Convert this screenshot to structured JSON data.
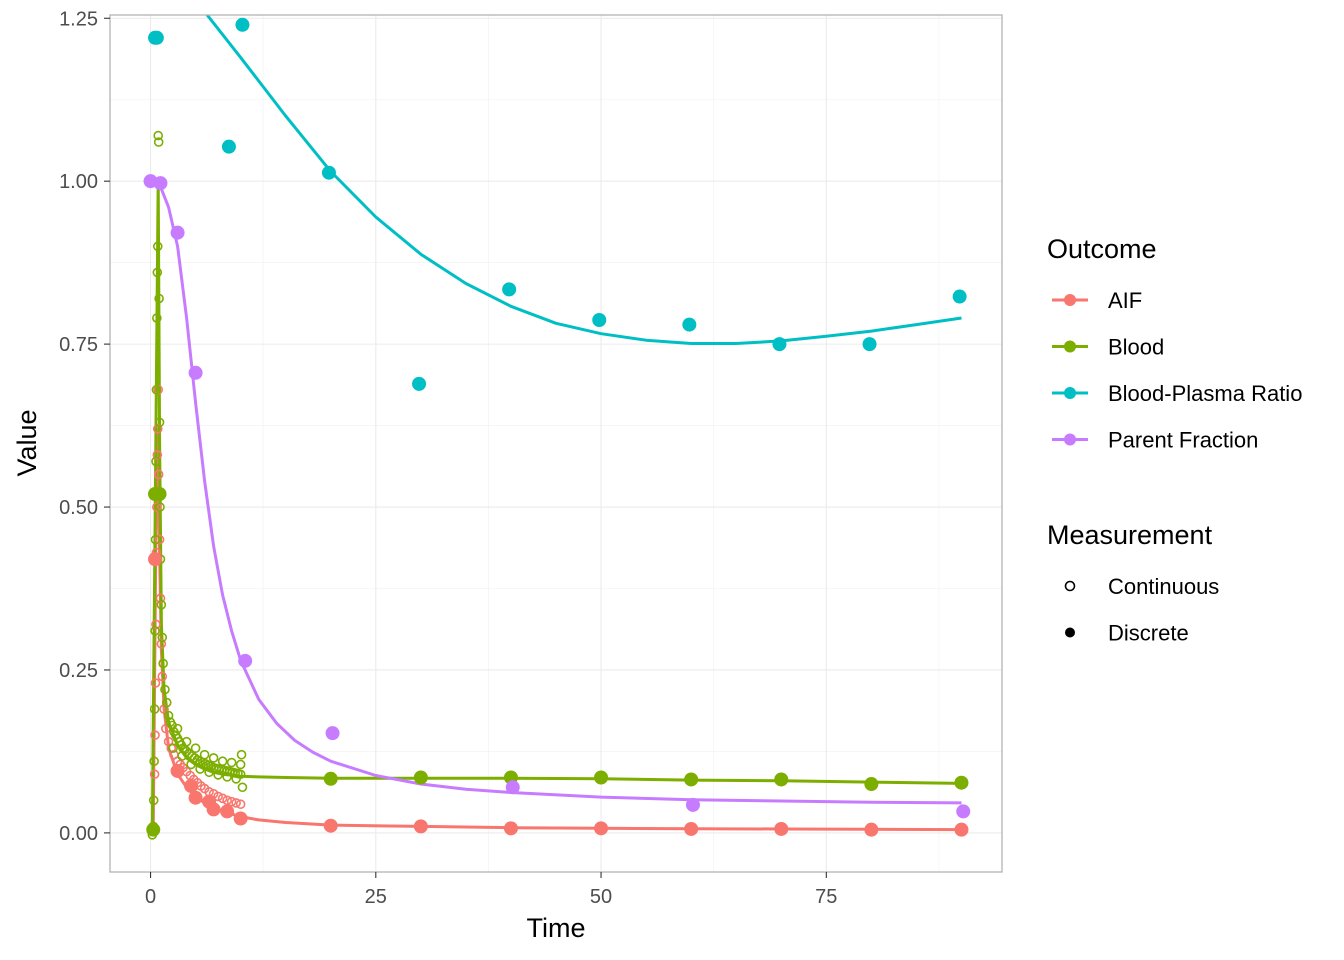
{
  "chart_data": {
    "type": "scatter",
    "xlabel": "Time",
    "ylabel": "Value",
    "xlim": [
      -4.5,
      94.5
    ],
    "ylim": [
      -0.06,
      1.255
    ],
    "x_ticks": [
      0,
      25,
      50,
      75
    ],
    "x_tick_labels": [
      "0",
      "25",
      "50",
      "75"
    ],
    "y_ticks": [
      0,
      0.25,
      0.5,
      0.75,
      1.0,
      1.25
    ],
    "y_tick_labels": [
      "0.00",
      "0.25",
      "0.50",
      "0.75",
      "1.00",
      "1.25"
    ],
    "grid": true,
    "legend_position": "right",
    "legend": {
      "outcome_title": "Outcome",
      "outcome_entries": [
        {
          "label": "AIF",
          "color": "#F8766D"
        },
        {
          "label": "Blood",
          "color": "#7CAE00"
        },
        {
          "label": "Blood-Plasma Ratio",
          "color": "#00BFC4"
        },
        {
          "label": "Parent Fraction",
          "color": "#C77CFF"
        }
      ],
      "measurement_title": "Measurement",
      "measurement_entries": [
        {
          "label": "Continuous",
          "shape": "open-circle"
        },
        {
          "label": "Discrete",
          "shape": "filled-circle"
        }
      ]
    },
    "series": [
      {
        "name": "AIF",
        "color": "#F8766D",
        "discrete_points": [
          [
            0.5,
            0.42
          ],
          [
            3,
            0.095
          ],
          [
            4.5,
            0.072
          ],
          [
            5,
            0.054
          ],
          [
            6.5,
            0.048
          ],
          [
            7,
            0.036
          ],
          [
            8.5,
            0.033
          ],
          [
            10,
            0.022
          ],
          [
            20,
            0.011
          ],
          [
            30,
            0.01
          ],
          [
            40,
            0.007
          ],
          [
            50,
            0.007
          ],
          [
            60,
            0.006
          ],
          [
            70,
            0.006
          ],
          [
            80,
            0.005
          ],
          [
            90,
            0.005
          ]
        ],
        "continuous_points": [
          [
            0.3,
            0.01
          ],
          [
            0.45,
            0.09
          ],
          [
            0.5,
            0.15
          ],
          [
            0.55,
            0.23
          ],
          [
            0.6,
            0.32
          ],
          [
            0.65,
            0.43
          ],
          [
            0.7,
            0.5
          ],
          [
            0.75,
            0.58
          ],
          [
            0.8,
            0.62
          ],
          [
            0.85,
            0.68
          ],
          [
            0.9,
            0.55
          ],
          [
            1.0,
            0.45
          ],
          [
            1.1,
            0.36
          ],
          [
            1.2,
            0.29
          ],
          [
            1.3,
            0.24
          ],
          [
            1.5,
            0.19
          ],
          [
            1.7,
            0.16
          ],
          [
            2.0,
            0.14
          ],
          [
            2.3,
            0.13
          ],
          [
            2.6,
            0.12
          ],
          [
            3.0,
            0.11
          ],
          [
            3.3,
            0.105
          ],
          [
            3.6,
            0.1
          ],
          [
            4.0,
            0.094
          ],
          [
            4.4,
            0.088
          ],
          [
            4.8,
            0.082
          ],
          [
            5.2,
            0.077
          ],
          [
            5.6,
            0.072
          ],
          [
            6.0,
            0.068
          ],
          [
            6.5,
            0.063
          ],
          [
            7.0,
            0.06
          ],
          [
            7.5,
            0.056
          ],
          [
            8.0,
            0.053
          ],
          [
            8.5,
            0.05
          ],
          [
            9.0,
            0.048
          ],
          [
            9.5,
            0.046
          ],
          [
            10.0,
            0.044
          ]
        ],
        "fit_curve": [
          [
            0.3,
            0
          ],
          [
            0.7,
            0.62
          ],
          [
            0.9,
            0.5
          ],
          [
            1.2,
            0.28
          ],
          [
            1.5,
            0.19
          ],
          [
            2,
            0.13
          ],
          [
            3,
            0.09
          ],
          [
            4,
            0.07
          ],
          [
            5,
            0.056
          ],
          [
            6,
            0.046
          ],
          [
            7,
            0.039
          ],
          [
            8,
            0.033
          ],
          [
            10,
            0.025
          ],
          [
            12,
            0.02
          ],
          [
            15,
            0.016
          ],
          [
            20,
            0.012
          ],
          [
            30,
            0.01
          ],
          [
            40,
            0.008
          ],
          [
            50,
            0.007
          ],
          [
            60,
            0.0065
          ],
          [
            70,
            0.006
          ],
          [
            80,
            0.0055
          ],
          [
            90,
            0.005
          ]
        ]
      },
      {
        "name": "Blood",
        "color": "#7CAE00",
        "discrete_points": [
          [
            0.3,
            0.005
          ],
          [
            0.5,
            0.52
          ],
          [
            1,
            0.52
          ],
          [
            20,
            0.083
          ],
          [
            30,
            0.085
          ],
          [
            40,
            0.085
          ],
          [
            50,
            0.085
          ],
          [
            60,
            0.082
          ],
          [
            70,
            0.082
          ],
          [
            80,
            0.075
          ],
          [
            90,
            0.077
          ]
        ],
        "continuous_points": [
          [
            0.2,
            -0.003
          ],
          [
            0.3,
            0.01
          ],
          [
            0.35,
            0.05
          ],
          [
            0.4,
            0.11
          ],
          [
            0.45,
            0.19
          ],
          [
            0.5,
            0.31
          ],
          [
            0.55,
            0.45
          ],
          [
            0.6,
            0.57
          ],
          [
            0.65,
            0.68
          ],
          [
            0.7,
            0.79
          ],
          [
            0.75,
            0.86
          ],
          [
            0.8,
            0.9
          ],
          [
            0.85,
            1.07
          ],
          [
            0.9,
            1.06
          ],
          [
            0.95,
            0.82
          ],
          [
            1.0,
            0.63
          ],
          [
            1.05,
            0.5
          ],
          [
            1.1,
            0.42
          ],
          [
            1.2,
            0.35
          ],
          [
            1.3,
            0.3
          ],
          [
            1.4,
            0.26
          ],
          [
            1.6,
            0.22
          ],
          [
            1.8,
            0.2
          ],
          [
            2.0,
            0.18
          ],
          [
            2.2,
            0.17
          ],
          [
            2.4,
            0.165
          ],
          [
            2.6,
            0.155
          ],
          [
            2.8,
            0.15
          ],
          [
            3.0,
            0.145
          ],
          [
            3.2,
            0.14
          ],
          [
            3.4,
            0.135
          ],
          [
            3.6,
            0.13
          ],
          [
            3.8,
            0.128
          ],
          [
            4.0,
            0.125
          ],
          [
            4.3,
            0.122
          ],
          [
            4.6,
            0.118
          ],
          [
            4.9,
            0.115
          ],
          [
            5.2,
            0.112
          ],
          [
            5.5,
            0.11
          ],
          [
            5.8,
            0.108
          ],
          [
            6.1,
            0.106
          ],
          [
            6.4,
            0.104
          ],
          [
            6.7,
            0.102
          ],
          [
            7.0,
            0.1
          ],
          [
            7.3,
            0.099
          ],
          [
            7.6,
            0.098
          ],
          [
            7.9,
            0.097
          ],
          [
            8.2,
            0.096
          ],
          [
            8.5,
            0.095
          ],
          [
            8.8,
            0.094
          ],
          [
            9.1,
            0.093
          ],
          [
            9.4,
            0.092
          ],
          [
            9.7,
            0.091
          ],
          [
            10.0,
            0.09
          ],
          [
            2.5,
            0.13
          ],
          [
            3.5,
            0.118
          ],
          [
            4.5,
            0.105
          ],
          [
            5.5,
            0.098
          ],
          [
            6.5,
            0.093
          ],
          [
            7.5,
            0.089
          ],
          [
            8.5,
            0.086
          ],
          [
            9.5,
            0.083
          ],
          [
            3.0,
            0.16
          ],
          [
            4.0,
            0.14
          ],
          [
            5.0,
            0.13
          ],
          [
            6.0,
            0.12
          ],
          [
            7.0,
            0.115
          ],
          [
            8.0,
            0.11
          ],
          [
            9.0,
            0.108
          ],
          [
            10.0,
            0.105
          ],
          [
            10.2,
            0.07
          ],
          [
            10.1,
            0.12
          ]
        ],
        "fit_curve": [
          [
            0.2,
            0
          ],
          [
            0.85,
            1.0
          ],
          [
            1.0,
            0.6
          ],
          [
            1.2,
            0.32
          ],
          [
            1.5,
            0.22
          ],
          [
            2,
            0.17
          ],
          [
            3,
            0.135
          ],
          [
            4,
            0.115
          ],
          [
            5,
            0.105
          ],
          [
            6,
            0.098
          ],
          [
            7,
            0.093
          ],
          [
            8,
            0.09
          ],
          [
            10,
            0.087
          ],
          [
            12,
            0.086
          ],
          [
            15,
            0.085
          ],
          [
            20,
            0.084
          ],
          [
            30,
            0.084
          ],
          [
            40,
            0.084
          ],
          [
            50,
            0.083
          ],
          [
            60,
            0.081
          ],
          [
            70,
            0.08
          ],
          [
            80,
            0.078
          ],
          [
            90,
            0.076
          ]
        ]
      },
      {
        "name": "Blood-Plasma Ratio",
        "color": "#00BFC4",
        "discrete_points": [
          [
            0.5,
            1.22
          ],
          [
            0.7,
            1.22
          ],
          [
            8.7,
            1.053
          ],
          [
            10.2,
            1.24
          ],
          [
            19.8,
            1.013
          ],
          [
            29.8,
            0.689
          ],
          [
            39.8,
            0.834
          ],
          [
            49.8,
            0.787
          ],
          [
            59.8,
            0.78
          ],
          [
            69.8,
            0.75
          ],
          [
            79.8,
            0.75
          ],
          [
            89.8,
            0.823
          ]
        ],
        "continuous_points": [],
        "fit_curve": [
          [
            6,
            1.26
          ],
          [
            10,
            1.19
          ],
          [
            15,
            1.1
          ],
          [
            20,
            1.015
          ],
          [
            25,
            0.945
          ],
          [
            30,
            0.888
          ],
          [
            35,
            0.843
          ],
          [
            40,
            0.808
          ],
          [
            45,
            0.782
          ],
          [
            50,
            0.766
          ],
          [
            55,
            0.756
          ],
          [
            60,
            0.751
          ],
          [
            65,
            0.751
          ],
          [
            70,
            0.755
          ],
          [
            75,
            0.762
          ],
          [
            80,
            0.77
          ],
          [
            85,
            0.78
          ],
          [
            90,
            0.79
          ]
        ]
      },
      {
        "name": "Parent Fraction",
        "color": "#C77CFF",
        "discrete_points": [
          [
            0,
            1.0
          ],
          [
            1.1,
            0.997
          ],
          [
            3,
            0.921
          ],
          [
            5,
            0.706
          ],
          [
            10.5,
            0.264
          ],
          [
            20.2,
            0.153
          ],
          [
            40.2,
            0.07
          ],
          [
            60.2,
            0.043
          ],
          [
            90.2,
            0.033
          ]
        ],
        "continuous_points": [],
        "fit_curve": [
          [
            0.5,
            1.0
          ],
          [
            1,
            0.995
          ],
          [
            2,
            0.96
          ],
          [
            3,
            0.9
          ],
          [
            4,
            0.79
          ],
          [
            5,
            0.66
          ],
          [
            6,
            0.54
          ],
          [
            7,
            0.44
          ],
          [
            8,
            0.365
          ],
          [
            9,
            0.31
          ],
          [
            10,
            0.265
          ],
          [
            12,
            0.205
          ],
          [
            14,
            0.168
          ],
          [
            16,
            0.142
          ],
          [
            18,
            0.124
          ],
          [
            20,
            0.11
          ],
          [
            25,
            0.088
          ],
          [
            30,
            0.075
          ],
          [
            35,
            0.067
          ],
          [
            40,
            0.062
          ],
          [
            50,
            0.055
          ],
          [
            60,
            0.051
          ],
          [
            70,
            0.049
          ],
          [
            80,
            0.047
          ],
          [
            90,
            0.046
          ]
        ]
      }
    ]
  }
}
